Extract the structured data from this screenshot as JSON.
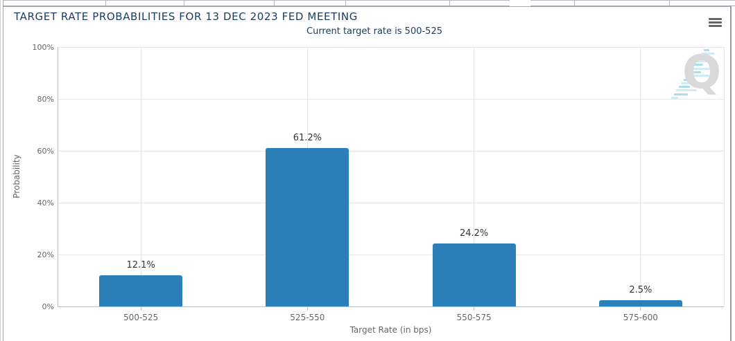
{
  "panel": {
    "title": "TARGET RATE PROBABILITIES FOR 13 DEC 2023 FED MEETING",
    "subtitle": "Current target rate is 500-525",
    "menu_icon": "hamburger-menu"
  },
  "watermark": {
    "letter": "Q"
  },
  "chart_data": {
    "type": "bar",
    "title": "TARGET RATE PROBABILITIES FOR 13 DEC 2023 FED MEETING",
    "subtitle": "Current target rate is 500-525",
    "categories": [
      "500-525",
      "525-550",
      "550-575",
      "575-600"
    ],
    "values": [
      12.1,
      61.2,
      24.2,
      2.5
    ],
    "data_labels": [
      "12.1%",
      "61.2%",
      "24.2%",
      "2.5%"
    ],
    "xlabel": "Target Rate (in bps)",
    "ylabel": "Probability",
    "ylim": [
      0,
      100
    ],
    "ytick_interval": 20,
    "ytick_labels": [
      "0%",
      "20%",
      "40%",
      "60%",
      "80%",
      "100%"
    ],
    "grid": true,
    "legend": "none",
    "bar_color": "#2b80b9"
  },
  "colors": {
    "bar": "#2b80b9",
    "title_text": "#1b3c63",
    "axis_text": "#666666",
    "data_label_text": "#333333",
    "gridline": "#e6e6e6",
    "axis_line": "#c0c0c0",
    "menu_icon": "#666666",
    "watermark_gray": "#d9d9d9",
    "watermark_blue_light": "#cdecf8",
    "watermark_blue": "#a9ddf1"
  }
}
